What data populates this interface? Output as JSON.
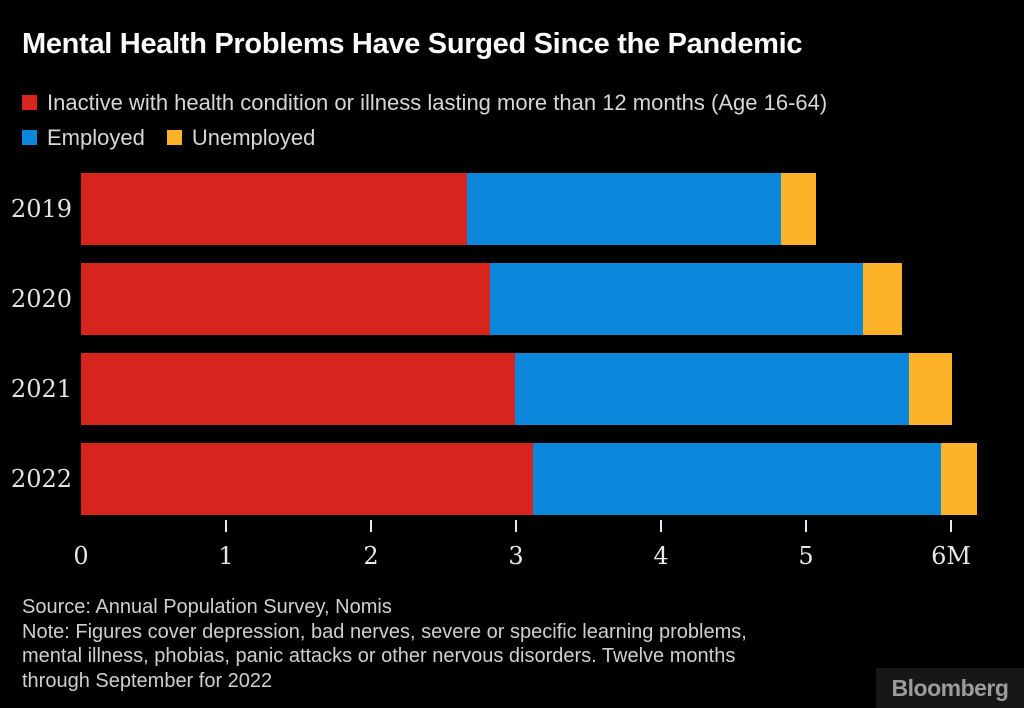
{
  "title": "Mental Health Problems Have Surged Since the Pandemic",
  "legend": {
    "items": [
      {
        "label": "Inactive with health condition or illness lasting more than 12 months (Age 16-64)",
        "color": "#d6251d"
      },
      {
        "label": "Employed",
        "color": "#0b87dc"
      },
      {
        "label": "Unemployed",
        "color": "#fcb32a"
      }
    ]
  },
  "chart_data": {
    "type": "bar",
    "orientation": "horizontal",
    "stacked": true,
    "unit": "millions of people (M)",
    "categories": [
      "2019",
      "2020",
      "2021",
      "2022"
    ],
    "series": [
      {
        "name": "Inactive with health condition or illness lasting more than 12 months (Age 16-64)",
        "color": "#d6251d",
        "values": [
          2.66,
          2.82,
          2.99,
          3.12
        ]
      },
      {
        "name": "Employed",
        "color": "#0b87dc",
        "values": [
          2.17,
          2.57,
          2.72,
          2.81
        ]
      },
      {
        "name": "Unemployed",
        "color": "#fcb32a",
        "values": [
          0.24,
          0.27,
          0.3,
          0.25
        ]
      }
    ],
    "totals": [
      5.07,
      5.66,
      6.01,
      6.18
    ],
    "xlim": [
      0,
      6.25
    ],
    "tick_values": [
      0,
      1,
      2,
      3,
      4,
      5,
      6
    ],
    "tick_labels": [
      "0",
      "1",
      "2",
      "3",
      "4",
      "5",
      "6M"
    ],
    "grid": false,
    "legend_position": "top-left",
    "title": "Mental Health Problems Have Surged Since the Pandemic"
  },
  "footer": {
    "source": "Source: Annual Population Survey, Nomis",
    "note_lines": [
      "Note: Figures cover depression, bad nerves, severe or specific learning problems,",
      "mental illness, phobias, panic attacks or other nervous disorders. Twelve months",
      "through September for 2022"
    ],
    "logo": "Bloomberg"
  },
  "colors": {
    "background": "#000000",
    "title_text": "#fbfbfb",
    "legend_text": "#d6d6d6",
    "axis_text": "#e8e8e8",
    "footer_text": "#cfcfcf",
    "logo_text": "#9c9c9c"
  }
}
